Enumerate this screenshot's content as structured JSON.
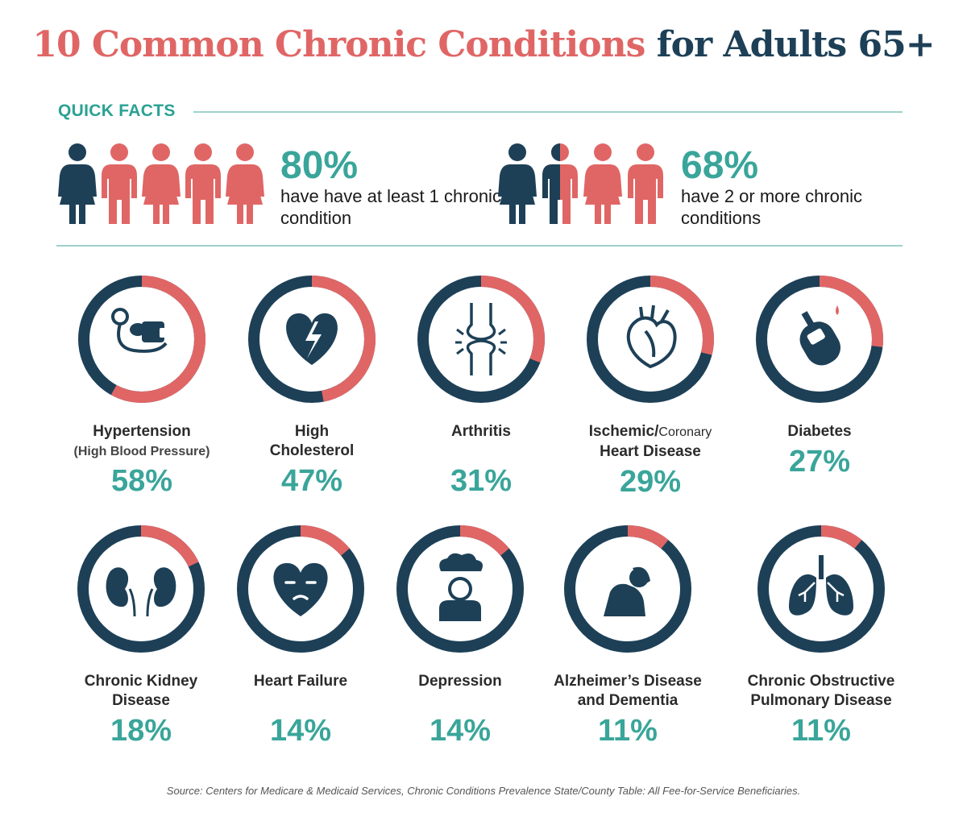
{
  "title": {
    "part1": "10 Common Chronic Conditions",
    "part2": "for Adults 65+"
  },
  "quick_facts": {
    "label": "QUICK FACTS",
    "facts": [
      {
        "percent": "80%",
        "text": "have have at least 1 chronic condition",
        "people_highlighted": 4,
        "people_total": 5
      },
      {
        "percent": "68%",
        "text": "have 2 or more chronic conditions",
        "people_highlighted": 2.5,
        "people_total": 4
      }
    ]
  },
  "colors": {
    "coral": "#e06666",
    "navy": "#1d4057",
    "teal": "#3aa59a",
    "rule": "#9dd2cb"
  },
  "chart_data": {
    "type": "pie",
    "title": "10 Common Chronic Conditions for Adults 65+",
    "unit": "percent of adults 65+",
    "categories": [
      {
        "name": "Hypertension",
        "subtitle": "(High Blood Pressure)",
        "value": 58,
        "label": "58%",
        "icon": "blood-pressure-cuff-icon"
      },
      {
        "name": "High Cholesterol",
        "value": 47,
        "label": "47%",
        "icon": "broken-heart-icon"
      },
      {
        "name": "Arthritis",
        "value": 31,
        "label": "31%",
        "icon": "knee-joint-icon"
      },
      {
        "name": "Ischemic/Coronary Heart Disease",
        "value": 29,
        "label": "29%",
        "icon": "anatomical-heart-icon"
      },
      {
        "name": "Diabetes",
        "value": 27,
        "label": "27%",
        "icon": "glucose-meter-icon"
      },
      {
        "name": "Chronic Kidney Disease",
        "value": 18,
        "label": "18%",
        "icon": "kidneys-icon"
      },
      {
        "name": "Heart Failure",
        "value": 14,
        "label": "14%",
        "icon": "sad-heart-icon"
      },
      {
        "name": "Depression",
        "value": 14,
        "label": "14%",
        "icon": "rain-cloud-person-icon"
      },
      {
        "name": "Alzheimer's Disease and Dementia",
        "value": 11,
        "label": "11%",
        "icon": "head-in-hands-icon"
      },
      {
        "name": "Chronic Obstructive Pulmonary Disease",
        "value": 11,
        "label": "11%",
        "icon": "lungs-icon"
      }
    ]
  },
  "display": {
    "items": [
      {
        "line1": "Hypertension",
        "line1b": "",
        "line2": "(High Blood Pressure)"
      },
      {
        "line1": "High",
        "line1b": "",
        "line2": "Cholesterol"
      },
      {
        "line1": "Arthritis",
        "line1b": "",
        "line2": ""
      },
      {
        "line1": "Ischemic/",
        "line1b": "Coronary",
        "line2": "Heart Disease"
      },
      {
        "line1": "Diabetes",
        "line1b": "",
        "line2": ""
      },
      {
        "line1": "Chronic Kidney",
        "line1b": "",
        "line2": "Disease"
      },
      {
        "line1": "Heart Failure",
        "line1b": "",
        "line2": ""
      },
      {
        "line1": "Depression",
        "line1b": "",
        "line2": ""
      },
      {
        "line1": "Alzheimer’s Disease",
        "line1b": "",
        "line2": "and Dementia"
      },
      {
        "line1": "Chronic Obstructive",
        "line1b": "",
        "line2": "Pulmonary Disease"
      }
    ]
  },
  "source": "Source: Centers for Medicare & Medicaid Services, Chronic Conditions Prevalence State/County Table: All Fee-for-Service Beneficiaries."
}
